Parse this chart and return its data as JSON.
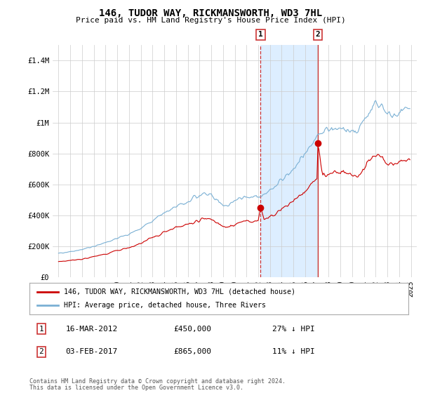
{
  "title": "146, TUDOR WAY, RICKMANSWORTH, WD3 7HL",
  "subtitle": "Price paid vs. HM Land Registry's House Price Index (HPI)",
  "legend_line1": "146, TUDOR WAY, RICKMANSWORTH, WD3 7HL (detached house)",
  "legend_line2": "HPI: Average price, detached house, Three Rivers",
  "sale1_date": "16-MAR-2012",
  "sale1_price": "£450,000",
  "sale1_hpi": "27% ↓ HPI",
  "sale2_date": "03-FEB-2017",
  "sale2_price": "£865,000",
  "sale2_hpi": "11% ↓ HPI",
  "footer": "Contains HM Land Registry data © Crown copyright and database right 2024.\nThis data is licensed under the Open Government Licence v3.0.",
  "red_color": "#cc0000",
  "blue_color": "#7ab0d4",
  "shade_color": "#ddeeff",
  "ylim": [
    0,
    1500000
  ],
  "yticks": [
    0,
    200000,
    400000,
    600000,
    800000,
    1000000,
    1200000,
    1400000
  ],
  "ytick_labels": [
    "£0",
    "£200K",
    "£400K",
    "£600K",
    "£800K",
    "£1M",
    "£1.2M",
    "£1.4M"
  ],
  "sale1_x": 2012.21,
  "sale1_y": 450000,
  "sale2_x": 2017.09,
  "sale2_y": 865000,
  "shade_x1": 2012.21,
  "shade_x2": 2017.09,
  "xlim_left": 1994.5,
  "xlim_right": 2025.5
}
